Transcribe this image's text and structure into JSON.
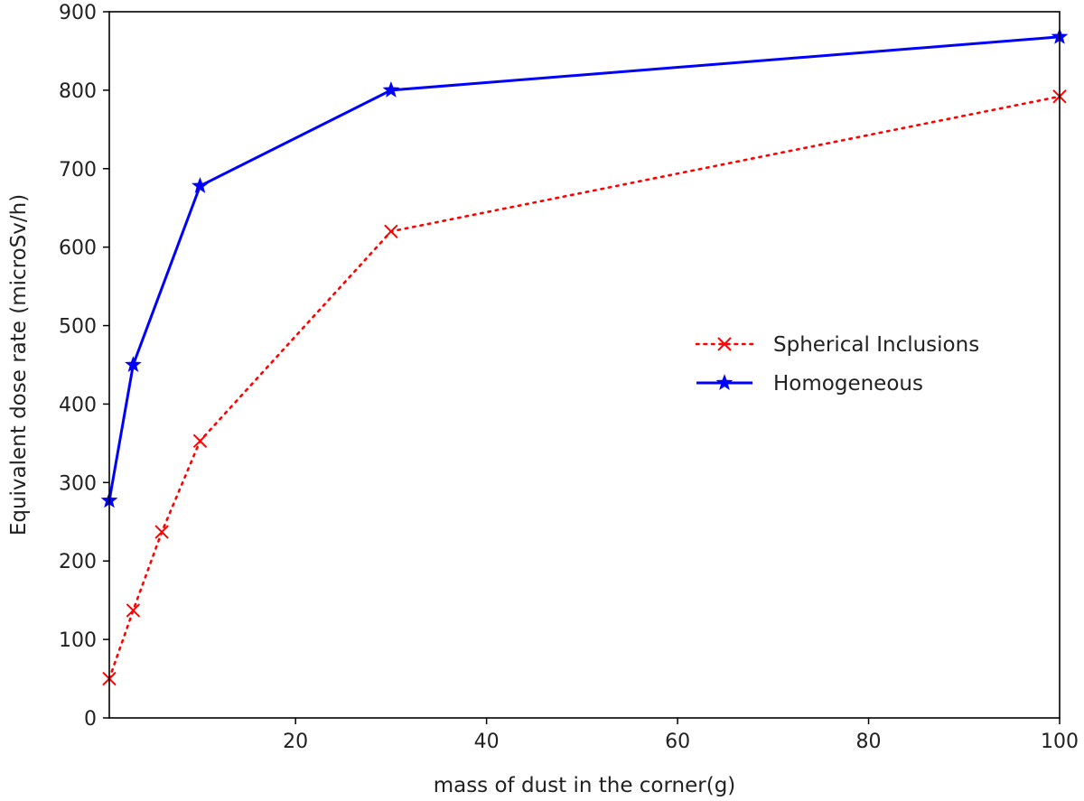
{
  "chart_data": {
    "type": "line",
    "title": "",
    "xlabel": "mass of dust in the corner(g)",
    "ylabel": "Equivalent dose rate (microSv/h)",
    "xlim": [
      0.5,
      100
    ],
    "ylim": [
      0,
      900
    ],
    "xticks": [
      20,
      40,
      60,
      80,
      100
    ],
    "yticks": [
      0,
      100,
      200,
      300,
      400,
      500,
      600,
      700,
      800,
      900
    ],
    "grid": false,
    "legend_position": "center-right",
    "series": [
      {
        "name": "Spherical Inclusions",
        "color": "#ff0000",
        "line_style": "dotted",
        "marker": "x",
        "x": [
          0.5,
          3,
          6,
          10,
          30,
          100
        ],
        "y": [
          50,
          137,
          237,
          353,
          620,
          792
        ]
      },
      {
        "name": "Homogeneous",
        "color": "#0000ff",
        "line_style": "solid",
        "marker": "star",
        "x": [
          0.5,
          3,
          10,
          30,
          100
        ],
        "y": [
          277,
          450,
          678,
          800,
          868
        ]
      }
    ]
  }
}
